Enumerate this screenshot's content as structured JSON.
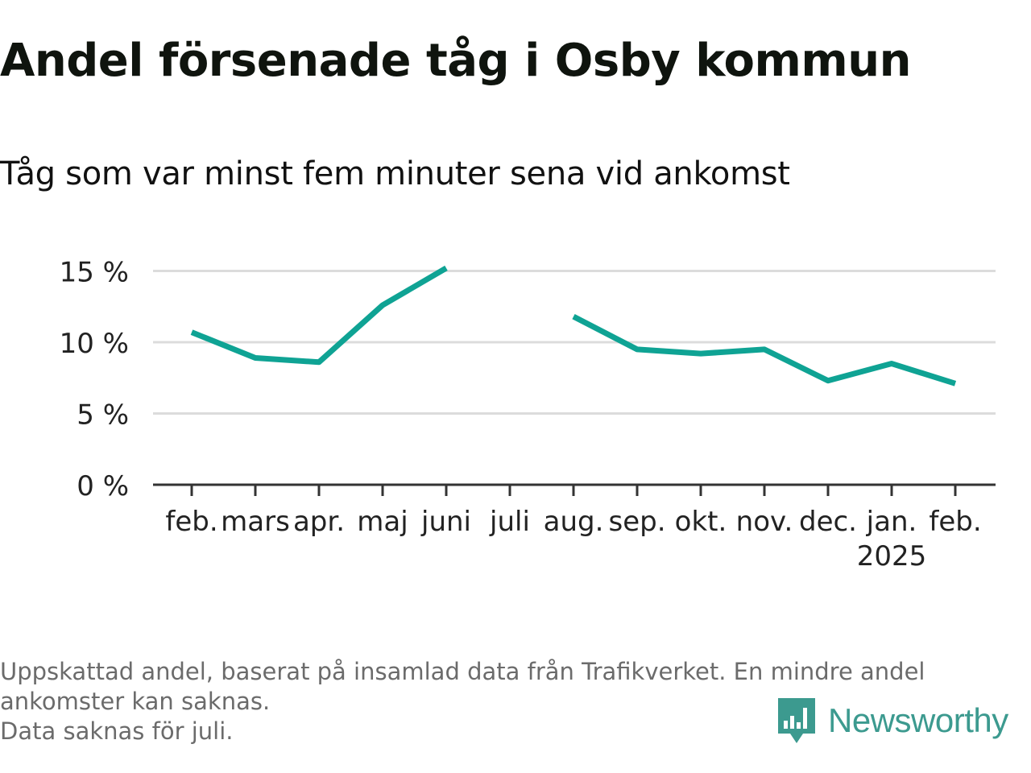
{
  "header": {
    "title": "Andel försenade tåg i Osby kommun",
    "subtitle": "Tåg som var minst fem minuter sena vid ankomst"
  },
  "colors": {
    "line": "#0fa394",
    "grid": "#dcdcdc",
    "axis": "#333333",
    "brand": "#3c9a8f"
  },
  "chart_data": {
    "type": "line",
    "title": "Andel försenade tåg i Osby kommun",
    "subtitle": "Tåg som var minst fem minuter sena vid ankomst",
    "xlabel": "",
    "ylabel": "",
    "categories": [
      "feb.",
      "mars",
      "apr.",
      "maj",
      "juni",
      "juli",
      "aug.",
      "sep.",
      "okt.",
      "nov.",
      "dec.",
      "jan.",
      "feb."
    ],
    "year_label": {
      "category_index": 11,
      "text": "2025"
    },
    "series": [
      {
        "values": [
          10.7,
          8.9,
          8.6,
          12.6,
          15.2,
          null,
          11.8,
          9.5,
          9.2,
          9.5,
          7.3,
          8.5,
          7.1
        ]
      }
    ],
    "y_ticks": [
      0,
      5,
      10,
      15
    ],
    "y_tick_labels": [
      "0 %",
      "5 %",
      "10 %",
      "15 %"
    ],
    "ylim": [
      0,
      15.5
    ],
    "grid": true,
    "legend": "none"
  },
  "footer": {
    "note_line1": "Uppskattad andel, baserat på insamlad data från Trafikverket. En mindre andel",
    "note_line2": "ankomster kan saknas.",
    "note_line3": "Data saknas för juli.",
    "brand": "Newsworthy"
  }
}
